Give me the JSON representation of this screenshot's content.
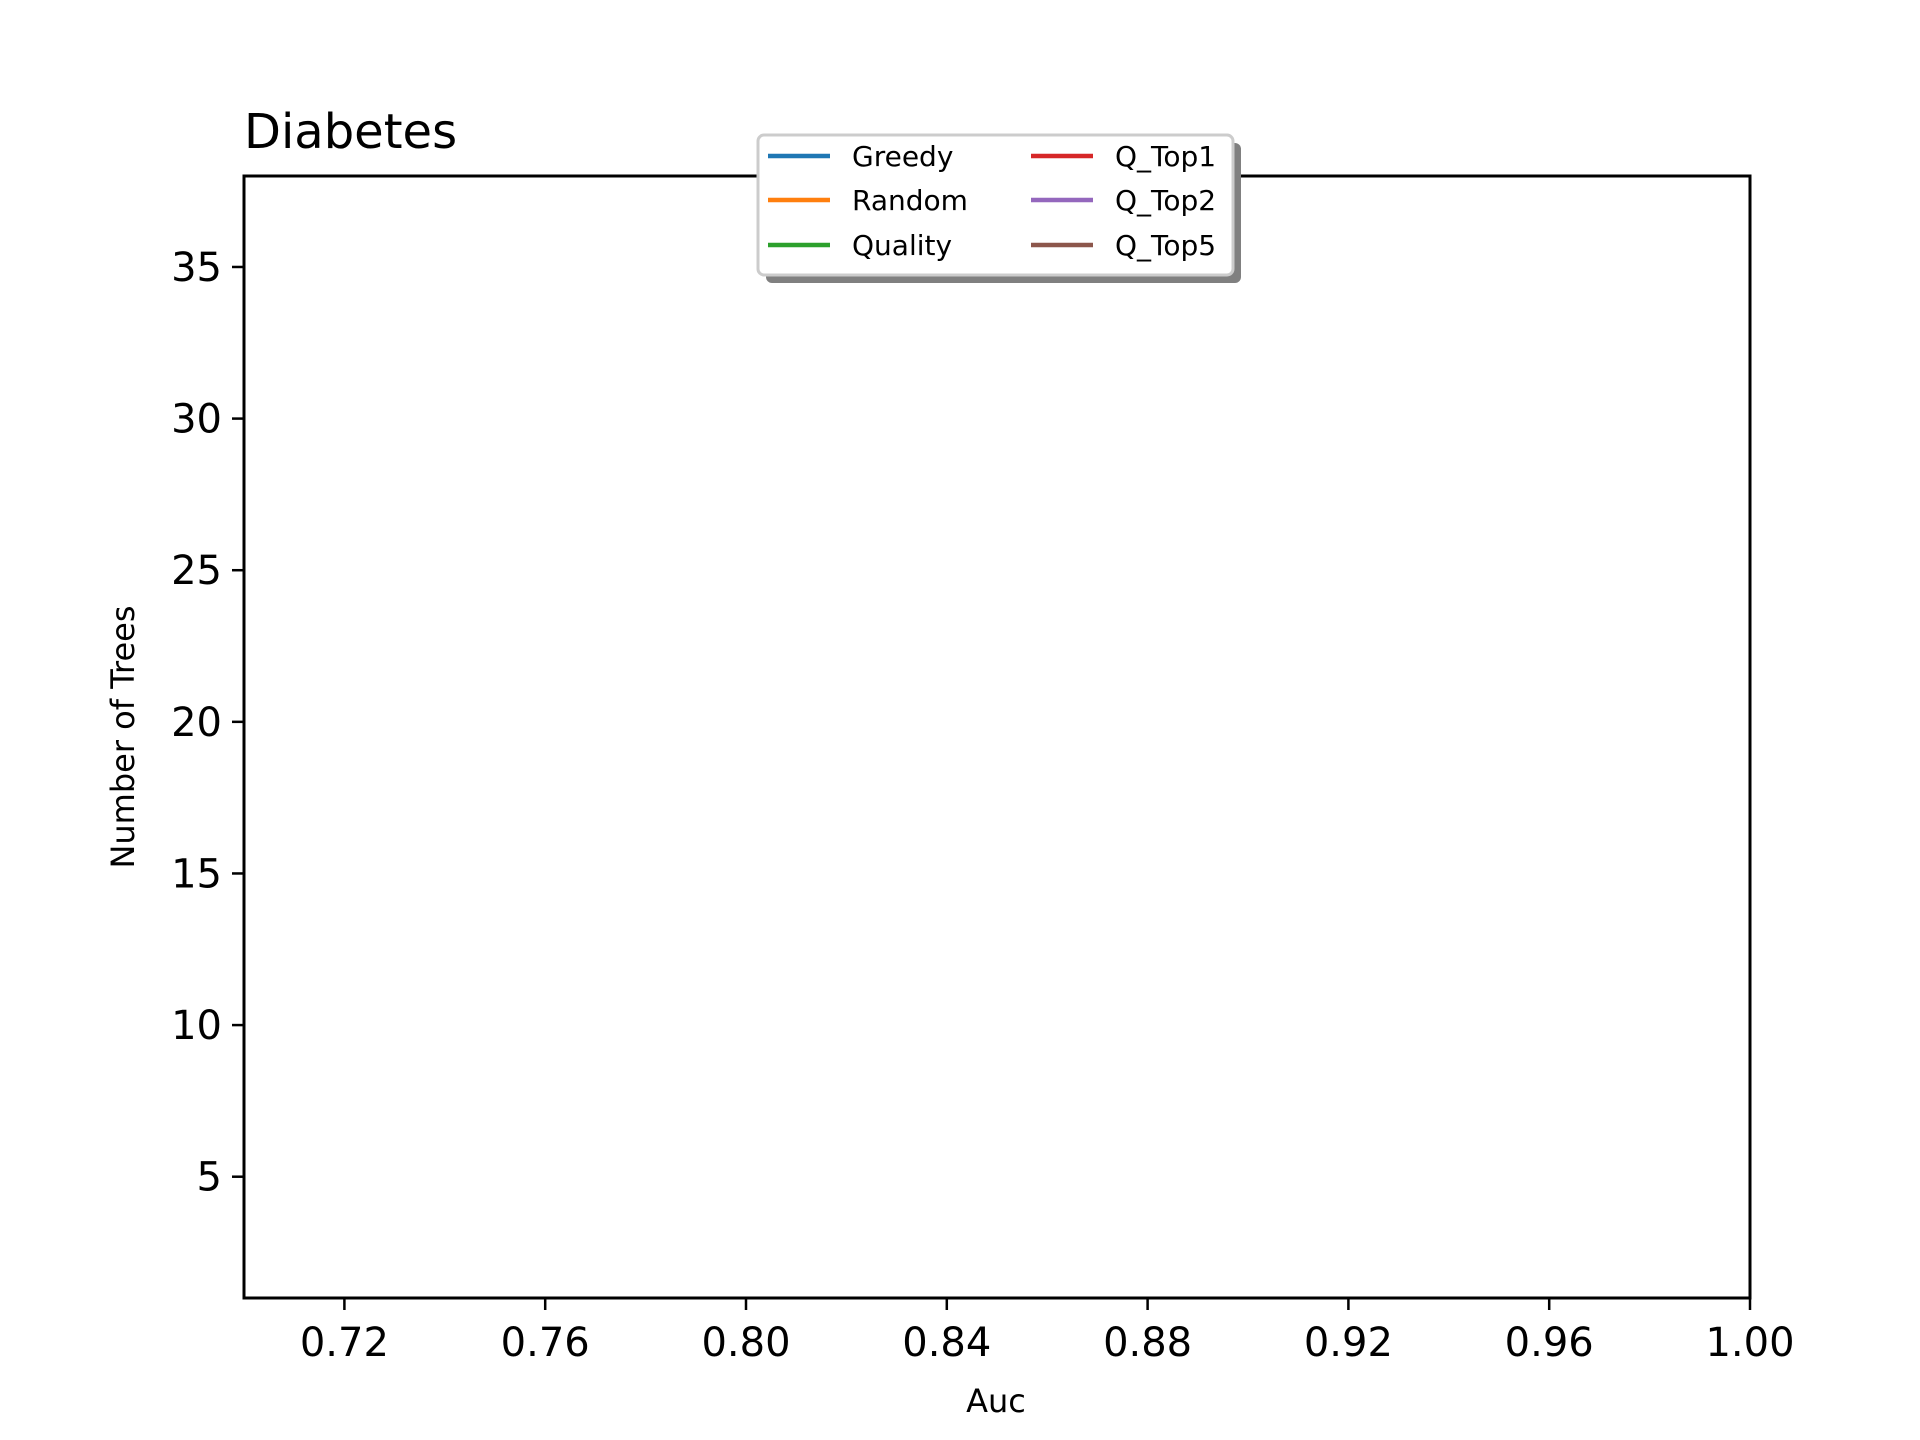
{
  "chart_data": {
    "type": "line",
    "title": "Diabetes",
    "xlabel": "Auc",
    "ylabel": "Number of Trees",
    "xlim": [
      0.7,
      1.0
    ],
    "ylim": [
      1.0,
      38.0
    ],
    "x_ticks": [
      0.72,
      0.76,
      0.8,
      0.84,
      0.88,
      0.92,
      0.96,
      1.0
    ],
    "x_tick_labels": [
      "0.72",
      "0.76",
      "0.80",
      "0.84",
      "0.88",
      "0.92",
      "0.96",
      "1.00"
    ],
    "y_ticks": [
      5,
      10,
      15,
      20,
      25,
      30,
      35
    ],
    "y_tick_labels": [
      "5",
      "10",
      "15",
      "20",
      "25",
      "30",
      "35"
    ],
    "grid": false,
    "legend_placement": "upper-center",
    "legend_columns": 2,
    "series": [
      {
        "name": "Greedy",
        "color": "#1f77b4",
        "x": [],
        "y": []
      },
      {
        "name": "Random",
        "color": "#ff7f0e",
        "x": [],
        "y": []
      },
      {
        "name": "Quality",
        "color": "#2ca02c",
        "x": [],
        "y": []
      },
      {
        "name": "Q_Top1",
        "color": "#d62728",
        "x": [],
        "y": []
      },
      {
        "name": "Q_Top2",
        "color": "#9467bd",
        "x": [],
        "y": []
      },
      {
        "name": "Q_Top5",
        "color": "#8c564b",
        "x": [],
        "y": []
      }
    ]
  }
}
